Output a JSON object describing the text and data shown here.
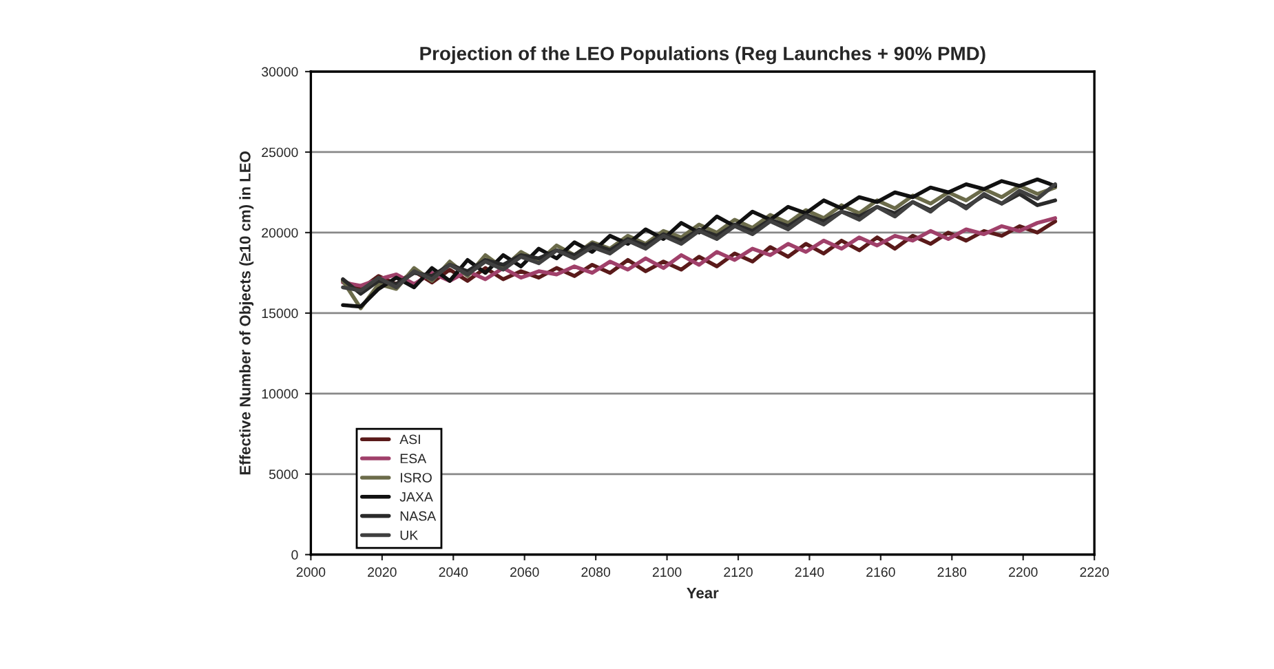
{
  "chart_data": {
    "type": "line",
    "title": "Projection of the LEO Populations (Reg Launches + 90% PMD)",
    "xlabel": "Year",
    "ylabel": "Effective Number of Objects (≥10 cm) in LEO",
    "xlim": [
      2000,
      2220
    ],
    "xticks": [
      2000,
      2020,
      2040,
      2060,
      2080,
      2100,
      2120,
      2140,
      2160,
      2180,
      2200,
      2220
    ],
    "ylim": [
      0,
      30000
    ],
    "yticks": [
      0,
      5000,
      10000,
      15000,
      20000,
      25000,
      30000
    ],
    "grid": "y",
    "legend": "bottom left",
    "marker": "none",
    "line_style": "solid",
    "x": [
      2009,
      2014,
      2019,
      2024,
      2029,
      2034,
      2039,
      2044,
      2049,
      2054,
      2059,
      2064,
      2069,
      2074,
      2079,
      2084,
      2089,
      2094,
      2099,
      2104,
      2109,
      2114,
      2119,
      2124,
      2129,
      2134,
      2139,
      2144,
      2149,
      2154,
      2159,
      2164,
      2169,
      2174,
      2179,
      2184,
      2189,
      2194,
      2199,
      2204,
      2209
    ],
    "series": [
      {
        "name": "ASI",
        "color": "#5a1a1a",
        "values": [
          17000,
          16500,
          17300,
          16800,
          17600,
          16900,
          17700,
          17000,
          17800,
          17100,
          17600,
          17200,
          17800,
          17300,
          18000,
          17500,
          18300,
          17600,
          18200,
          17700,
          18500,
          17900,
          18700,
          18200,
          19100,
          18500,
          19300,
          18700,
          19500,
          18900,
          19700,
          19000,
          19800,
          19300,
          20000,
          19500,
          20100,
          19800,
          20400,
          20000,
          20700
        ]
      },
      {
        "name": "ESA",
        "color": "#a0406a",
        "values": [
          16900,
          16700,
          17100,
          17400,
          16800,
          17500,
          17000,
          17600,
          17100,
          17800,
          17200,
          17600,
          17400,
          17900,
          17500,
          18200,
          17700,
          18400,
          17800,
          18600,
          18000,
          18800,
          18300,
          19000,
          18600,
          19300,
          18800,
          19500,
          19000,
          19700,
          19200,
          19800,
          19500,
          20100,
          19600,
          20200,
          19900,
          20400,
          20100,
          20600,
          20900
        ]
      },
      {
        "name": "ISRO",
        "color": "#6b6b4a",
        "values": [
          17000,
          15300,
          16800,
          16500,
          17800,
          17000,
          18200,
          17300,
          18600,
          17800,
          18800,
          18200,
          19200,
          18600,
          19400,
          19000,
          19800,
          19300,
          20100,
          19700,
          20500,
          20000,
          20800,
          20300,
          21100,
          20600,
          21400,
          20900,
          21700,
          21200,
          22000,
          21500,
          22300,
          21800,
          22500,
          22000,
          22700,
          22200,
          22900,
          22400,
          22800
        ]
      },
      {
        "name": "JAXA",
        "color": "#111111",
        "values": [
          15500,
          15400,
          16500,
          17200,
          16600,
          17800,
          17000,
          18300,
          17500,
          18600,
          17900,
          19000,
          18400,
          19400,
          18800,
          19800,
          19300,
          20200,
          19600,
          20600,
          20000,
          21000,
          20400,
          21300,
          20800,
          21600,
          21200,
          22000,
          21500,
          22200,
          21900,
          22500,
          22200,
          22800,
          22500,
          23000,
          22700,
          23200,
          22900,
          23300,
          22900
        ]
      },
      {
        "name": "NASA",
        "color": "#2a2a2a",
        "values": [
          17100,
          16200,
          17000,
          16800,
          17500,
          17300,
          18000,
          17600,
          18300,
          18000,
          18600,
          18400,
          18900,
          18600,
          19300,
          18900,
          19600,
          19200,
          19900,
          19500,
          20200,
          19800,
          20500,
          20100,
          20800,
          20400,
          21100,
          20700,
          21300,
          21000,
          21600,
          21200,
          21900,
          21400,
          22100,
          21600,
          22300,
          21800,
          22400,
          21700,
          22000
        ]
      },
      {
        "name": "UK",
        "color": "#404040",
        "values": [
          16600,
          16400,
          17200,
          16600,
          17600,
          17100,
          18000,
          17400,
          18200,
          17700,
          18500,
          18100,
          18900,
          18400,
          19100,
          18700,
          19500,
          19000,
          19800,
          19300,
          20100,
          19600,
          20400,
          19900,
          20700,
          20200,
          21000,
          20500,
          21300,
          20800,
          21600,
          21000,
          21900,
          21300,
          22200,
          21500,
          22400,
          21800,
          22600,
          22100,
          23000
        ]
      }
    ]
  }
}
